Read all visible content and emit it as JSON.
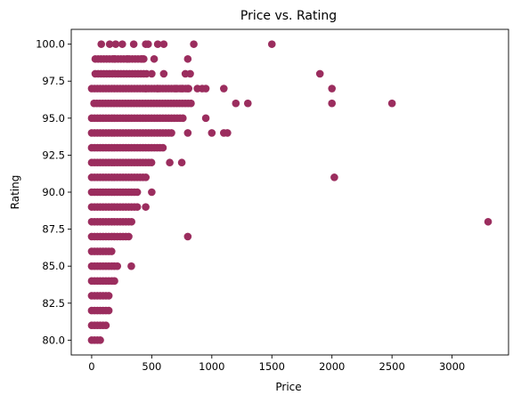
{
  "chart_data": {
    "type": "scatter",
    "title": "Price vs. Rating",
    "xlabel": "Price",
    "ylabel": "Rating",
    "xlim": [
      -170,
      3470
    ],
    "ylim": [
      79.0,
      101.0
    ],
    "xticks": [
      0,
      500,
      1000,
      1500,
      2000,
      2500,
      3000
    ],
    "xtick_labels": [
      "0",
      "500",
      "1000",
      "1500",
      "2000",
      "2500",
      "3000"
    ],
    "yticks": [
      80.0,
      82.5,
      85.0,
      87.5,
      90.0,
      92.5,
      95.0,
      97.5,
      100.0
    ],
    "ytick_labels": [
      "80.0",
      "82.5",
      "85.0",
      "87.5",
      "90.0",
      "92.5",
      "95.0",
      "97.5",
      "100.0"
    ],
    "grid": false,
    "marker_color": "#9b2d5e",
    "bands": [
      {
        "rating": 80,
        "price_min": 0,
        "price_max": 90
      },
      {
        "rating": 81,
        "price_min": 0,
        "price_max": 130
      },
      {
        "rating": 82,
        "price_min": 0,
        "price_max": 150
      },
      {
        "rating": 83,
        "price_min": 0,
        "price_max": 150
      },
      {
        "rating": 84,
        "price_min": 0,
        "price_max": 210
      },
      {
        "rating": 85,
        "price_min": 0,
        "price_max": 230
      },
      {
        "rating": 86,
        "price_min": 0,
        "price_max": 180
      },
      {
        "rating": 87,
        "price_min": 0,
        "price_max": 320
      },
      {
        "rating": 88,
        "price_min": 0,
        "price_max": 350
      },
      {
        "rating": 89,
        "price_min": 0,
        "price_max": 380
      },
      {
        "rating": 90,
        "price_min": 0,
        "price_max": 380
      },
      {
        "rating": 91,
        "price_min": 0,
        "price_max": 460
      },
      {
        "rating": 92,
        "price_min": 0,
        "price_max": 520
      },
      {
        "rating": 93,
        "price_min": 0,
        "price_max": 600
      },
      {
        "rating": 94,
        "price_min": 0,
        "price_max": 680
      },
      {
        "rating": 95,
        "price_min": 0,
        "price_max": 780
      },
      {
        "rating": 96,
        "price_min": 20,
        "price_max": 850
      },
      {
        "rating": 97,
        "price_min": 0,
        "price_max": 820
      },
      {
        "rating": 98,
        "price_min": 30,
        "price_max": 480
      },
      {
        "rating": 99,
        "price_min": 30,
        "price_max": 450
      }
    ],
    "points": [
      {
        "x": 80,
        "y": 100
      },
      {
        "x": 150,
        "y": 100
      },
      {
        "x": 200,
        "y": 100
      },
      {
        "x": 255,
        "y": 100
      },
      {
        "x": 350,
        "y": 100
      },
      {
        "x": 450,
        "y": 100
      },
      {
        "x": 470,
        "y": 100
      },
      {
        "x": 550,
        "y": 100
      },
      {
        "x": 600,
        "y": 100
      },
      {
        "x": 850,
        "y": 100
      },
      {
        "x": 1500,
        "y": 100
      },
      {
        "x": 190,
        "y": 99
      },
      {
        "x": 300,
        "y": 99
      },
      {
        "x": 420,
        "y": 99
      },
      {
        "x": 520,
        "y": 99
      },
      {
        "x": 800,
        "y": 99
      },
      {
        "x": 500,
        "y": 98
      },
      {
        "x": 600,
        "y": 98
      },
      {
        "x": 780,
        "y": 98
      },
      {
        "x": 820,
        "y": 98
      },
      {
        "x": 1900,
        "y": 98
      },
      {
        "x": 450,
        "y": 97
      },
      {
        "x": 550,
        "y": 97
      },
      {
        "x": 700,
        "y": 97
      },
      {
        "x": 750,
        "y": 97
      },
      {
        "x": 800,
        "y": 97
      },
      {
        "x": 880,
        "y": 97
      },
      {
        "x": 920,
        "y": 97
      },
      {
        "x": 950,
        "y": 97
      },
      {
        "x": 1100,
        "y": 97
      },
      {
        "x": 2000,
        "y": 97
      },
      {
        "x": 1200,
        "y": 96
      },
      {
        "x": 1300,
        "y": 96
      },
      {
        "x": 2000,
        "y": 96
      },
      {
        "x": 2500,
        "y": 96
      },
      {
        "x": 950,
        "y": 95
      },
      {
        "x": 800,
        "y": 94
      },
      {
        "x": 1000,
        "y": 94
      },
      {
        "x": 1100,
        "y": 94
      },
      {
        "x": 1130,
        "y": 94
      },
      {
        "x": 650,
        "y": 92
      },
      {
        "x": 750,
        "y": 92
      },
      {
        "x": 2020,
        "y": 91
      },
      {
        "x": 500,
        "y": 90
      },
      {
        "x": 450,
        "y": 89
      },
      {
        "x": 3300,
        "y": 88
      },
      {
        "x": 800,
        "y": 87
      },
      {
        "x": 330,
        "y": 85
      }
    ]
  }
}
